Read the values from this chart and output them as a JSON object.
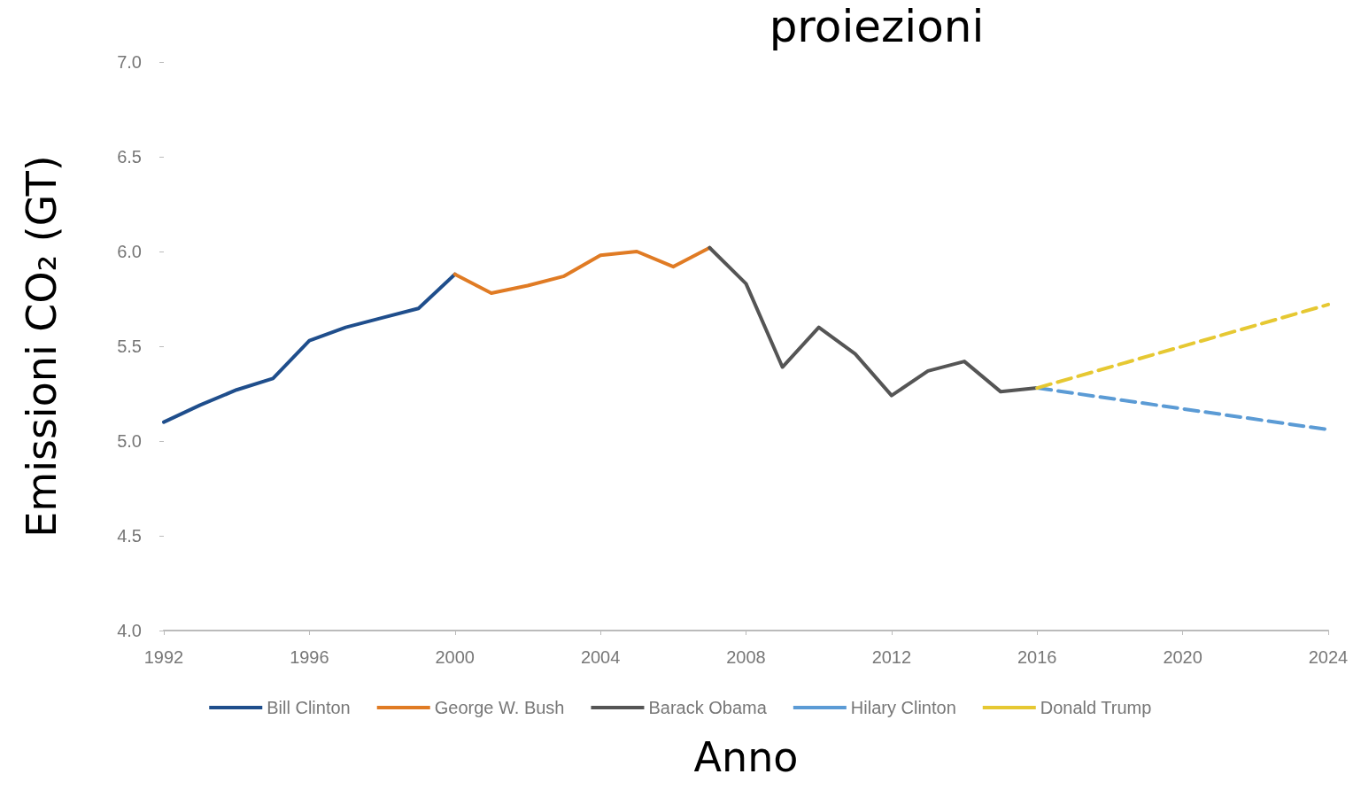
{
  "chart_data": {
    "type": "line",
    "title": "proiezioni",
    "xlabel": "Anno",
    "ylabel": "Emissioni CO₂ (GT)",
    "xlim": [
      1992,
      2024
    ],
    "xticks": [
      1992,
      1996,
      2000,
      2004,
      2008,
      2012,
      2016,
      2020,
      2024
    ],
    "ylim": [
      4.0,
      7.0
    ],
    "yticks": [
      {
        "value": 4.0,
        "label": "4.0"
      },
      {
        "value": 4.5,
        "label": "4.5"
      },
      {
        "value": 5.0,
        "label": "5.0"
      },
      {
        "value": 5.5,
        "label": "5.5"
      },
      {
        "value": 6.0,
        "label": "6.0"
      },
      {
        "value": 6.5,
        "label": "6.5"
      },
      {
        "value": 7.0,
        "label": "7.0"
      }
    ],
    "grid": false,
    "legend": "bottom",
    "marker": "none",
    "series": [
      {
        "name": "Bill Clinton",
        "color": "#1f4e8c",
        "line_style": "solid",
        "x": [
          1992,
          1993,
          1994,
          1995,
          1996,
          1997,
          1998,
          1999,
          2000
        ],
        "values": [
          5.1,
          5.19,
          5.27,
          5.33,
          5.53,
          5.6,
          5.65,
          5.7,
          5.88
        ]
      },
      {
        "name": "George W. Bush",
        "color": "#e07b24",
        "line_style": "solid",
        "x": [
          2000,
          2001,
          2002,
          2003,
          2004,
          2005,
          2006,
          2007
        ],
        "values": [
          5.88,
          5.78,
          5.82,
          5.87,
          5.98,
          6.0,
          5.92,
          6.02
        ]
      },
      {
        "name": "Barack Obama",
        "color": "#555555",
        "line_style": "solid",
        "x": [
          2007,
          2008,
          2009,
          2010,
          2011,
          2012,
          2013,
          2014,
          2015,
          2016
        ],
        "values": [
          6.02,
          5.83,
          5.39,
          5.6,
          5.46,
          5.24,
          5.37,
          5.42,
          5.26,
          5.28
        ]
      },
      {
        "name": "Hilary Clinton",
        "color": "#5b9bd5",
        "line_style": "dashed",
        "x": [
          2016,
          2024
        ],
        "values": [
          5.28,
          5.06
        ]
      },
      {
        "name": "Donald Trump",
        "color": "#e6c832",
        "line_style": "dashed",
        "x": [
          2016,
          2024
        ],
        "values": [
          5.28,
          5.72
        ]
      }
    ]
  }
}
